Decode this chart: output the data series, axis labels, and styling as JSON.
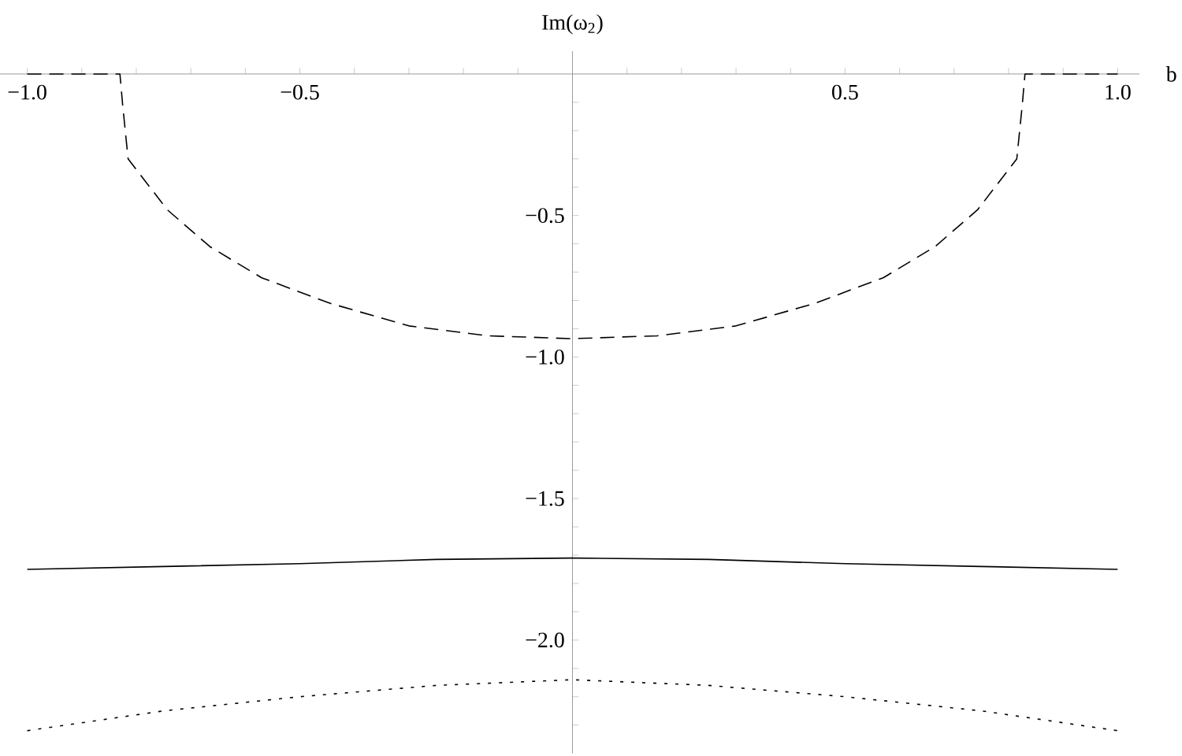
{
  "chart_data": {
    "type": "line",
    "xlabel": "b",
    "ylabel": "Im(ω$_{2}$)",
    "xlim": [
      -1.05,
      1.04
    ],
    "ylim": [
      -2.4,
      0.08
    ],
    "xticks": [
      {
        "value": -1.0,
        "label": "−1.0"
      },
      {
        "value": -0.9,
        "label": null
      },
      {
        "value": -0.8,
        "label": null
      },
      {
        "value": -0.7,
        "label": null
      },
      {
        "value": -0.6,
        "label": null
      },
      {
        "value": -0.5,
        "label": "−0.5"
      },
      {
        "value": -0.4,
        "label": null
      },
      {
        "value": -0.3,
        "label": null
      },
      {
        "value": -0.2,
        "label": null
      },
      {
        "value": -0.1,
        "label": null
      },
      {
        "value": 0.1,
        "label": null
      },
      {
        "value": 0.2,
        "label": null
      },
      {
        "value": 0.3,
        "label": null
      },
      {
        "value": 0.4,
        "label": null
      },
      {
        "value": 0.5,
        "label": "0.5"
      },
      {
        "value": 0.6,
        "label": null
      },
      {
        "value": 0.7,
        "label": null
      },
      {
        "value": 0.8,
        "label": null
      },
      {
        "value": 0.9,
        "label": null
      },
      {
        "value": 1.0,
        "label": "1.0"
      }
    ],
    "yticks": [
      {
        "value": -0.1,
        "label": null
      },
      {
        "value": -0.2,
        "label": null
      },
      {
        "value": -0.3,
        "label": null
      },
      {
        "value": -0.4,
        "label": null
      },
      {
        "value": -0.5,
        "label": "−0.5"
      },
      {
        "value": -0.6,
        "label": null
      },
      {
        "value": -0.7,
        "label": null
      },
      {
        "value": -0.8,
        "label": null
      },
      {
        "value": -0.9,
        "label": null
      },
      {
        "value": -1.0,
        "label": "−1.0"
      },
      {
        "value": -1.1,
        "label": null
      },
      {
        "value": -1.2,
        "label": null
      },
      {
        "value": -1.3,
        "label": null
      },
      {
        "value": -1.4,
        "label": null
      },
      {
        "value": -1.5,
        "label": "−1.5"
      },
      {
        "value": -1.6,
        "label": null
      },
      {
        "value": -1.7,
        "label": null
      },
      {
        "value": -1.8,
        "label": null
      },
      {
        "value": -1.9,
        "label": null
      },
      {
        "value": -2.0,
        "label": "−2.0"
      },
      {
        "value": -2.1,
        "label": null
      },
      {
        "value": -2.2,
        "label": null
      },
      {
        "value": -2.3,
        "label": null
      }
    ],
    "series": [
      {
        "color": "#000000",
        "line_style": "dashed",
        "x": [
          -1.0,
          -0.9,
          -0.83,
          -0.825,
          -0.815,
          -0.743,
          -0.665,
          -0.57,
          -0.445,
          -0.3,
          -0.155,
          0,
          0.155,
          0.3,
          0.445,
          0.57,
          0.665,
          0.743,
          0.815,
          0.825,
          0.83,
          0.9,
          1.0
        ],
        "values": [
          0,
          0,
          0,
          -0.11,
          -0.3,
          -0.48,
          -0.61,
          -0.72,
          -0.81,
          -0.89,
          -0.925,
          -0.935,
          -0.925,
          -0.89,
          -0.81,
          -0.72,
          -0.61,
          -0.48,
          -0.3,
          -0.11,
          0,
          0,
          0
        ]
      },
      {
        "color": "#000000",
        "line_style": "solid",
        "x": [
          -1,
          -0.75,
          -0.5,
          -0.25,
          0,
          0.25,
          0.5,
          0.75,
          1
        ],
        "values": [
          -1.75,
          -1.74,
          -1.73,
          -1.715,
          -1.71,
          -1.715,
          -1.73,
          -1.74,
          -1.75
        ]
      },
      {
        "color": "#000000",
        "line_style": "dotted",
        "x": [
          -1,
          -0.75,
          -0.5,
          -0.25,
          0,
          0.25,
          0.5,
          0.75,
          1
        ],
        "values": [
          -2.32,
          -2.25,
          -2.2,
          -2.16,
          -2.14,
          -2.16,
          -2.2,
          -2.25,
          -2.32
        ]
      }
    ]
  }
}
